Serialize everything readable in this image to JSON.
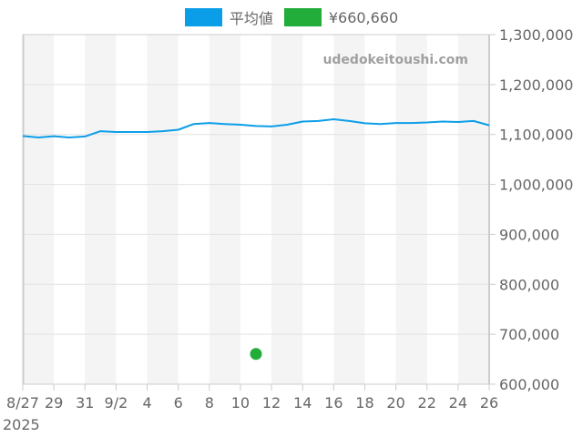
{
  "legend": {
    "items": [
      {
        "label": "平均値",
        "color": "#0b9ee8"
      },
      {
        "label": "¥660,660",
        "color": "#22ad3a"
      }
    ]
  },
  "watermark": "udedokeitoushi.com",
  "chart_data": {
    "type": "line",
    "title": "",
    "xlabel": "",
    "ylabel": "",
    "ylim": [
      600000,
      1300000
    ],
    "y_ticks": [
      "1,300,000",
      "1,200,000",
      "1,100,000",
      "1,000,000",
      "900,000",
      "800,000",
      "700,000",
      "600,000"
    ],
    "x_tick_labels": [
      "8/27",
      "29",
      "31",
      "9/2",
      "4",
      "6",
      "8",
      "10",
      "12",
      "14",
      "16",
      "18",
      "20",
      "22",
      "24",
      "26"
    ],
    "x_year_label": "2025",
    "grid": true,
    "legend_position": "top",
    "x": [
      "2025-08-27",
      "2025-08-28",
      "2025-08-29",
      "2025-08-30",
      "2025-08-31",
      "2025-09-01",
      "2025-09-02",
      "2025-09-03",
      "2025-09-04",
      "2025-09-05",
      "2025-09-06",
      "2025-09-07",
      "2025-09-08",
      "2025-09-09",
      "2025-09-10",
      "2025-09-11",
      "2025-09-12",
      "2025-09-13",
      "2025-09-14",
      "2025-09-15",
      "2025-09-16",
      "2025-09-17",
      "2025-09-18",
      "2025-09-19",
      "2025-09-20",
      "2025-09-21",
      "2025-09-22",
      "2025-09-23",
      "2025-09-24",
      "2025-09-25",
      "2025-09-26"
    ],
    "series": [
      {
        "name": "平均値",
        "color": "#0b9ee8",
        "values": [
          1097000,
          1094000,
          1096500,
          1094000,
          1096000,
          1106500,
          1105000,
          1105000,
          1105000,
          1106500,
          1109500,
          1121000,
          1123000,
          1121000,
          1119500,
          1117000,
          1116000,
          1119500,
          1126000,
          1127000,
          1130500,
          1127000,
          1122500,
          1121000,
          1123000,
          1123000,
          1124000,
          1126000,
          1125000,
          1127000,
          1118500
        ]
      },
      {
        "name": "¥660,660",
        "color": "#22ad3a",
        "type": "scatter",
        "points": [
          {
            "x": "2025-09-11",
            "y": 660660
          }
        ]
      }
    ]
  }
}
